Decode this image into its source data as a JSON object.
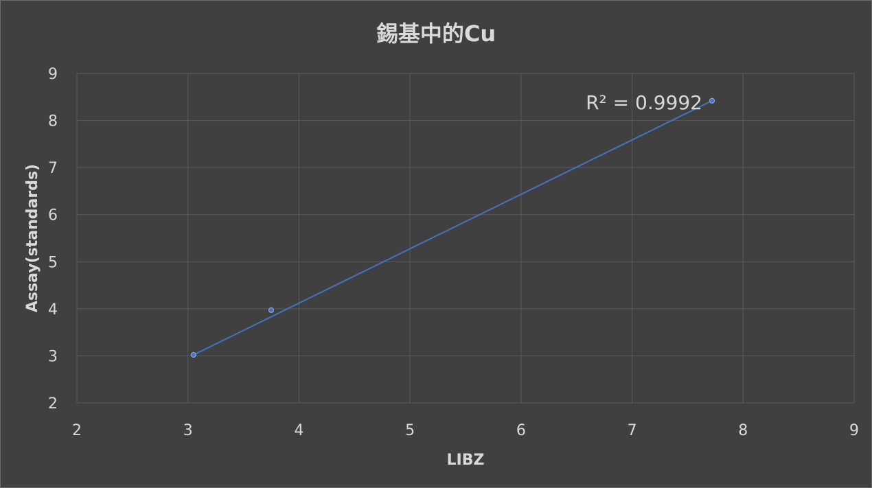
{
  "chart_data": {
    "type": "scatter",
    "title": "錫基中的Cu",
    "xlabel": "LIBZ",
    "ylabel": "Assay(standards)",
    "xlim": [
      2,
      9
    ],
    "ylim": [
      2,
      9
    ],
    "xticks": [
      "2",
      "3",
      "4",
      "5",
      "6",
      "7",
      "8",
      "9"
    ],
    "yticks": [
      "2",
      "3",
      "4",
      "5",
      "6",
      "7",
      "8",
      "9"
    ],
    "grid": true,
    "legend": "none",
    "series": [
      {
        "points": [
          {
            "x": 3.05,
            "y": 3.02
          },
          {
            "x": 3.75,
            "y": 3.97
          },
          {
            "x": 7.72,
            "y": 8.42
          }
        ],
        "color": "#4472c4"
      }
    ],
    "trendline": {
      "type": "linear",
      "from": {
        "x": 3.05,
        "y": 3.02
      },
      "to": {
        "x": 7.72,
        "y": 8.42
      },
      "color": "#4472c4",
      "label": "R² = 0.9992"
    }
  }
}
